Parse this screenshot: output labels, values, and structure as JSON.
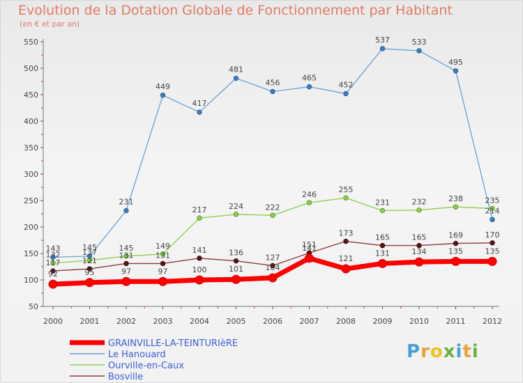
{
  "title": "Evolution de la Dotation Globale de Fonctionnement par Habitant",
  "subtitle": "(en € et par an)",
  "brand": {
    "letters": [
      "P",
      "r",
      "o",
      "x",
      "i",
      "t",
      "i"
    ],
    "colors": [
      "#4a9fd8",
      "#e8a23a",
      "#f0c020",
      "#6ab04a",
      "#4a9fd8",
      "#e8a23a",
      "#6ab04a"
    ]
  },
  "chart_data": {
    "type": "line",
    "x": [
      "2000",
      "2001",
      "2002",
      "2003",
      "2004",
      "2005",
      "2006",
      "2007",
      "2008",
      "2009",
      "2010",
      "2011",
      "2012"
    ],
    "ylim": [
      50,
      550
    ],
    "yticks": [
      50,
      100,
      150,
      200,
      250,
      300,
      350,
      400,
      450,
      500,
      550
    ],
    "grid": false,
    "legend": "bottom-left",
    "series": [
      {
        "name": "Le Hanouard",
        "color": "#5b9bd5",
        "values": [
          143,
          145,
          231,
          449,
          417,
          481,
          456,
          465,
          452,
          537,
          533,
          495,
          214
        ]
      },
      {
        "name": "Ourville-en-Caux",
        "color": "#8fd14f",
        "values": [
          132,
          137,
          145,
          149,
          217,
          224,
          222,
          246,
          255,
          231,
          232,
          238,
          235
        ]
      },
      {
        "name": "Bosville",
        "color": "#8b3a3a",
        "values": [
          117,
          121,
          131,
          131,
          141,
          136,
          127,
          151,
          173,
          165,
          165,
          169,
          170
        ]
      },
      {
        "name": "GRAINVILLE-LA-TEINTURIèRE",
        "color": "#ff0000",
        "values": [
          92,
          95,
          97,
          97,
          100,
          101,
          104,
          141,
          121,
          131,
          134,
          135,
          135
        ]
      }
    ],
    "data_labels": {
      "Le Hanouard": [
        "143",
        "145",
        "231",
        "449",
        "417",
        "481",
        "456",
        "465",
        "452",
        "537",
        "533",
        "495",
        "214"
      ],
      "Ourville-en-Caux": [
        "132",
        "137",
        "145",
        "149",
        "217",
        "224",
        "222",
        "246",
        "255",
        "231",
        "232",
        "238",
        "235"
      ],
      "Bosville": [
        "117",
        "121",
        "131",
        "131",
        "141",
        "136",
        "127",
        "151",
        "173",
        "165",
        "165",
        "169",
        "170"
      ],
      "GRAINVILLE-LA-TEINTURIèRE": [
        "92",
        "95",
        "97",
        "97",
        "100",
        "101",
        "104",
        "141",
        "121",
        "131",
        "134",
        "135",
        "135"
      ]
    }
  }
}
